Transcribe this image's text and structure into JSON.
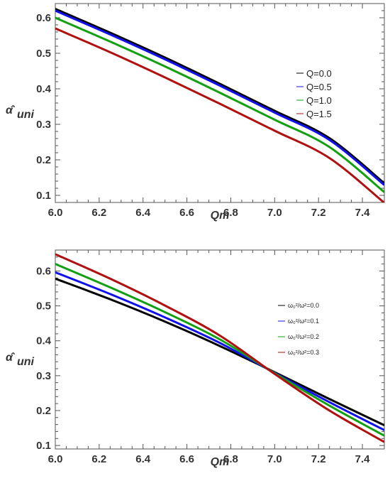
{
  "chart_data": [
    {
      "type": "line",
      "title": "",
      "xlabel": "Qm",
      "ylabel": "α̂",
      "ylabel_sub": "uni",
      "xlim": [
        6.0,
        7.5
      ],
      "ylim": [
        0.08,
        0.64
      ],
      "xticks": [
        "6.0",
        "6.2",
        "6.4",
        "6.6",
        "6.8",
        "7.0",
        "7.2",
        "7.4"
      ],
      "yticks": [
        "0.1",
        "0.2",
        "0.3",
        "0.4",
        "0.5",
        "0.6"
      ],
      "grid": false,
      "legend_position": "right",
      "x": [
        6.0,
        6.25,
        6.5,
        6.75,
        7.0,
        7.25,
        7.5
      ],
      "series": [
        {
          "name": "Q=0.0",
          "color": "#000000",
          "values": [
            0.625,
            0.558,
            0.488,
            0.414,
            0.338,
            0.261,
            0.134
          ]
        },
        {
          "name": "Q=0.5",
          "color": "#1010ee",
          "values": [
            0.62,
            0.553,
            0.483,
            0.409,
            0.333,
            0.256,
            0.129
          ]
        },
        {
          "name": "Q=1.0",
          "color": "#12a012",
          "values": [
            0.6,
            0.533,
            0.463,
            0.389,
            0.313,
            0.236,
            0.109
          ]
        },
        {
          "name": "Q=1.5",
          "color": "#b01010",
          "values": [
            0.57,
            0.503,
            0.432,
            0.358,
            0.282,
            0.205,
            0.079
          ]
        }
      ]
    },
    {
      "type": "line",
      "title": "",
      "xlabel": "Qm",
      "ylabel": "α̂",
      "ylabel_sub": "uni",
      "xlim": [
        6.0,
        7.5
      ],
      "ylim": [
        0.09,
        0.66
      ],
      "xticks": [
        "6.0",
        "6.2",
        "6.4",
        "6.6",
        "6.8",
        "7.0",
        "7.2",
        "7.4"
      ],
      "yticks": [
        "0.1",
        "0.2",
        "0.3",
        "0.4",
        "0.5",
        "0.6"
      ],
      "grid": false,
      "legend_position": "right",
      "x": [
        6.0,
        6.25,
        6.5,
        6.75,
        7.0,
        7.25,
        7.5
      ],
      "series": [
        {
          "name": "ω₀²/ω²=0.0",
          "color": "#000000",
          "values": [
            0.578,
            0.519,
            0.455,
            0.385,
            0.31,
            0.233,
            0.158
          ]
        },
        {
          "name": "ω₀²/ω²=0.1",
          "color": "#1010ee",
          "values": [
            0.596,
            0.534,
            0.467,
            0.394,
            0.308,
            0.224,
            0.144
          ]
        },
        {
          "name": "ω₀²/ω²=0.2",
          "color": "#12a012",
          "values": [
            0.62,
            0.553,
            0.482,
            0.404,
            0.307,
            0.214,
            0.128
          ]
        },
        {
          "name": "ω₀²/ω²=0.3",
          "color": "#b01010",
          "values": [
            0.648,
            0.578,
            0.501,
            0.415,
            0.305,
            0.2,
            0.11
          ]
        }
      ]
    }
  ]
}
